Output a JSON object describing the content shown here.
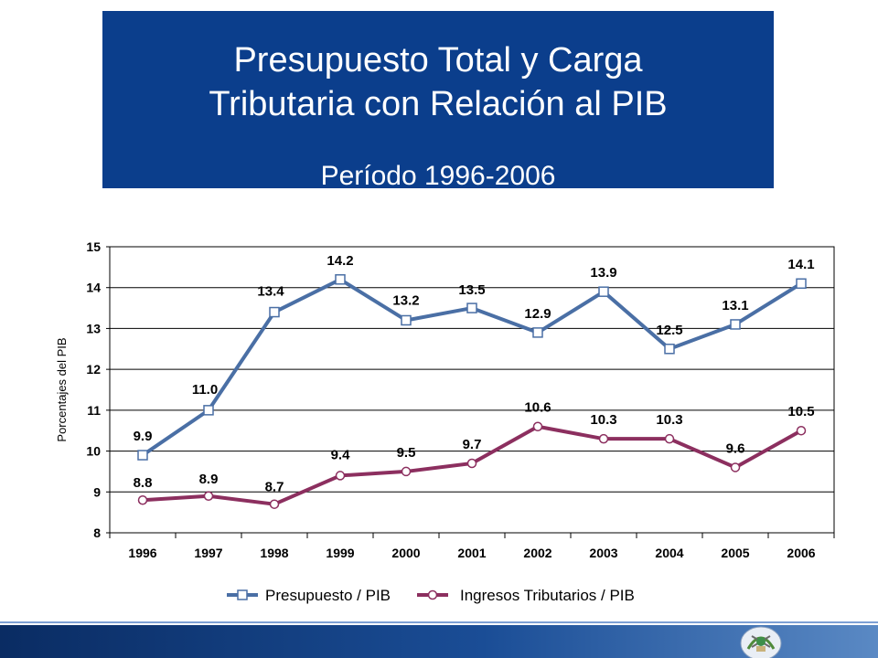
{
  "title": {
    "main": "Presupuesto Total y Carga\nTributaria con Relación al PIB",
    "sub": "Período 1996-2006"
  },
  "colors": {
    "title_bg": "#0b3e8c",
    "series1": "#4a6fa5",
    "series2": "#8c2f5f"
  },
  "chart_data": {
    "type": "line",
    "categories": [
      "1996",
      "1997",
      "1998",
      "1999",
      "2000",
      "2001",
      "2002",
      "2003",
      "2004",
      "2005",
      "2006"
    ],
    "ylabel": "Porcentajes del PIB",
    "xlabel": "",
    "ylim": [
      8,
      15
    ],
    "yticks": [
      "8",
      "9",
      "10",
      "11",
      "12",
      "13",
      "14",
      "15"
    ],
    "grid": true,
    "legend_position": "bottom",
    "series": [
      {
        "name": "Presupuesto / PIB",
        "marker": "square",
        "values": [
          9.9,
          11.0,
          13.4,
          14.2,
          13.2,
          13.5,
          12.9,
          13.9,
          12.5,
          13.1,
          14.1
        ],
        "labels": [
          "9.9",
          "11.0",
          "13.4",
          "14.2",
          "13.2",
          "13.5",
          "12.9",
          "13.9",
          "12.5",
          "13.1",
          "14.1"
        ]
      },
      {
        "name": "Ingresos Tributarios / PIB",
        "marker": "circle",
        "values": [
          8.8,
          8.9,
          8.7,
          9.4,
          9.5,
          9.7,
          10.6,
          10.3,
          10.3,
          9.6,
          10.5
        ],
        "labels": [
          "8.8",
          "8.9",
          "8.7",
          "9.4",
          "9.5",
          "9.7",
          "10.6",
          "10.3",
          "10.3",
          "9.6",
          "10.5"
        ]
      }
    ]
  },
  "footer": {
    "seal_icon": "coat-of-arms-icon"
  }
}
